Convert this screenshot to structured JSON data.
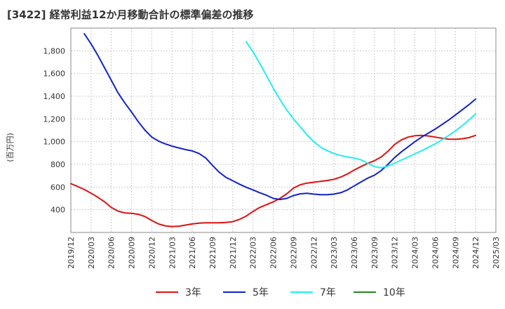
{
  "title": "[3422]  経常利益12か月移動合計の標準偏差の推移",
  "chart_data": {
    "type": "line",
    "title": "[3422]  経常利益12か月移動合計の標準偏差の推移",
    "xlabel": "",
    "ylabel": "(百万円)",
    "ylim": [
      200,
      2000
    ],
    "yticks": [
      400,
      600,
      800,
      1000,
      1200,
      1400,
      1600,
      1800
    ],
    "ytick_labels": [
      "400",
      "600",
      "800",
      "1,000",
      "1,200",
      "1,400",
      "1,600",
      "1,800"
    ],
    "xticks": [
      "2019/12",
      "2020/03",
      "2020/06",
      "2020/09",
      "2020/12",
      "2021/03",
      "2021/06",
      "2021/09",
      "2021/12",
      "2022/03",
      "2022/06",
      "2022/09",
      "2022/12",
      "2023/03",
      "2023/06",
      "2023/09",
      "2023/12",
      "2024/03",
      "2024/06",
      "2024/09",
      "2024/12",
      "2025/03"
    ],
    "grid": true,
    "legend_position": "bottom",
    "series": [
      {
        "name": "3年",
        "color": "#dd1111",
        "points": [
          [
            "2019/12",
            630
          ],
          [
            "2020/01",
            605
          ],
          [
            "2020/02",
            578
          ],
          [
            "2020/03",
            545
          ],
          [
            "2020/04",
            510
          ],
          [
            "2020/05",
            470
          ],
          [
            "2020/06",
            420
          ],
          [
            "2020/07",
            388
          ],
          [
            "2020/08",
            372
          ],
          [
            "2020/09",
            368
          ],
          [
            "2020/10",
            360
          ],
          [
            "2020/11",
            340
          ],
          [
            "2020/12",
            305
          ],
          [
            "2021/01",
            275
          ],
          [
            "2021/02",
            258
          ],
          [
            "2021/03",
            252
          ],
          [
            "2021/04",
            255
          ],
          [
            "2021/05",
            265
          ],
          [
            "2021/06",
            275
          ],
          [
            "2021/07",
            282
          ],
          [
            "2021/08",
            285
          ],
          [
            "2021/09",
            285
          ],
          [
            "2021/10",
            285
          ],
          [
            "2021/11",
            288
          ],
          [
            "2021/12",
            295
          ],
          [
            "2022/01",
            315
          ],
          [
            "2022/02",
            345
          ],
          [
            "2022/03",
            385
          ],
          [
            "2022/04",
            420
          ],
          [
            "2022/05",
            445
          ],
          [
            "2022/06",
            470
          ],
          [
            "2022/07",
            500
          ],
          [
            "2022/08",
            540
          ],
          [
            "2022/09",
            590
          ],
          [
            "2022/10",
            620
          ],
          [
            "2022/11",
            635
          ],
          [
            "2022/12",
            642
          ],
          [
            "2023/01",
            650
          ],
          [
            "2023/02",
            658
          ],
          [
            "2023/03",
            668
          ],
          [
            "2023/04",
            688
          ],
          [
            "2023/05",
            715
          ],
          [
            "2023/06",
            750
          ],
          [
            "2023/07",
            780
          ],
          [
            "2023/08",
            808
          ],
          [
            "2023/09",
            832
          ],
          [
            "2023/10",
            865
          ],
          [
            "2023/11",
            915
          ],
          [
            "2023/12",
            975
          ],
          [
            "2024/01",
            1015
          ],
          [
            "2024/02",
            1040
          ],
          [
            "2024/03",
            1052
          ],
          [
            "2024/04",
            1055
          ],
          [
            "2024/05",
            1050
          ],
          [
            "2024/06",
            1040
          ],
          [
            "2024/07",
            1030
          ],
          [
            "2024/08",
            1022
          ],
          [
            "2024/09",
            1020
          ],
          [
            "2024/10",
            1025
          ],
          [
            "2024/11",
            1035
          ],
          [
            "2024/12",
            1055
          ]
        ]
      },
      {
        "name": "5年",
        "color": "#1122cc",
        "points": [
          [
            "2020/02",
            1950
          ],
          [
            "2020/03",
            1860
          ],
          [
            "2020/04",
            1760
          ],
          [
            "2020/05",
            1650
          ],
          [
            "2020/06",
            1540
          ],
          [
            "2020/07",
            1430
          ],
          [
            "2020/08",
            1340
          ],
          [
            "2020/09",
            1260
          ],
          [
            "2020/10",
            1175
          ],
          [
            "2020/11",
            1100
          ],
          [
            "2020/12",
            1040
          ],
          [
            "2021/01",
            1005
          ],
          [
            "2021/02",
            980
          ],
          [
            "2021/03",
            960
          ],
          [
            "2021/04",
            945
          ],
          [
            "2021/05",
            930
          ],
          [
            "2021/06",
            918
          ],
          [
            "2021/07",
            895
          ],
          [
            "2021/08",
            855
          ],
          [
            "2021/09",
            790
          ],
          [
            "2021/10",
            730
          ],
          [
            "2021/11",
            685
          ],
          [
            "2021/12",
            655
          ],
          [
            "2022/01",
            625
          ],
          [
            "2022/02",
            598
          ],
          [
            "2022/03",
            575
          ],
          [
            "2022/04",
            550
          ],
          [
            "2022/05",
            527
          ],
          [
            "2022/06",
            500
          ],
          [
            "2022/07",
            490
          ],
          [
            "2022/08",
            500
          ],
          [
            "2022/09",
            525
          ],
          [
            "2022/10",
            540
          ],
          [
            "2022/11",
            545
          ],
          [
            "2022/12",
            538
          ],
          [
            "2023/01",
            532
          ],
          [
            "2023/02",
            533
          ],
          [
            "2023/03",
            538
          ],
          [
            "2023/04",
            550
          ],
          [
            "2023/05",
            575
          ],
          [
            "2023/06",
            610
          ],
          [
            "2023/07",
            645
          ],
          [
            "2023/08",
            678
          ],
          [
            "2023/09",
            705
          ],
          [
            "2023/10",
            745
          ],
          [
            "2023/11",
            800
          ],
          [
            "2023/12",
            860
          ],
          [
            "2024/01",
            910
          ],
          [
            "2024/02",
            955
          ],
          [
            "2024/03",
            1000
          ],
          [
            "2024/04",
            1040
          ],
          [
            "2024/05",
            1075
          ],
          [
            "2024/06",
            1110
          ],
          [
            "2024/07",
            1150
          ],
          [
            "2024/08",
            1190
          ],
          [
            "2024/09",
            1235
          ],
          [
            "2024/10",
            1280
          ],
          [
            "2024/11",
            1325
          ],
          [
            "2024/12",
            1375
          ]
        ]
      },
      {
        "name": "7年",
        "color": "#22eeee",
        "points": [
          [
            "2022/02",
            1880
          ],
          [
            "2022/03",
            1790
          ],
          [
            "2022/04",
            1690
          ],
          [
            "2022/05",
            1580
          ],
          [
            "2022/06",
            1470
          ],
          [
            "2022/07",
            1370
          ],
          [
            "2022/08",
            1280
          ],
          [
            "2022/09",
            1200
          ],
          [
            "2022/10",
            1130
          ],
          [
            "2022/11",
            1060
          ],
          [
            "2022/12",
            1000
          ],
          [
            "2023/01",
            952
          ],
          [
            "2023/02",
            920
          ],
          [
            "2023/03",
            895
          ],
          [
            "2023/04",
            878
          ],
          [
            "2023/05",
            865
          ],
          [
            "2023/06",
            855
          ],
          [
            "2023/07",
            840
          ],
          [
            "2023/08",
            810
          ],
          [
            "2023/09",
            780
          ],
          [
            "2023/10",
            770
          ],
          [
            "2023/11",
            785
          ],
          [
            "2023/12",
            810
          ],
          [
            "2024/01",
            838
          ],
          [
            "2024/02",
            865
          ],
          [
            "2024/03",
            892
          ],
          [
            "2024/04",
            920
          ],
          [
            "2024/05",
            950
          ],
          [
            "2024/06",
            980
          ],
          [
            "2024/07",
            1015
          ],
          [
            "2024/08",
            1055
          ],
          [
            "2024/09",
            1095
          ],
          [
            "2024/10",
            1140
          ],
          [
            "2024/11",
            1190
          ],
          [
            "2024/12",
            1245
          ]
        ]
      },
      {
        "name": "10年",
        "color": "#228822",
        "points": []
      }
    ]
  }
}
